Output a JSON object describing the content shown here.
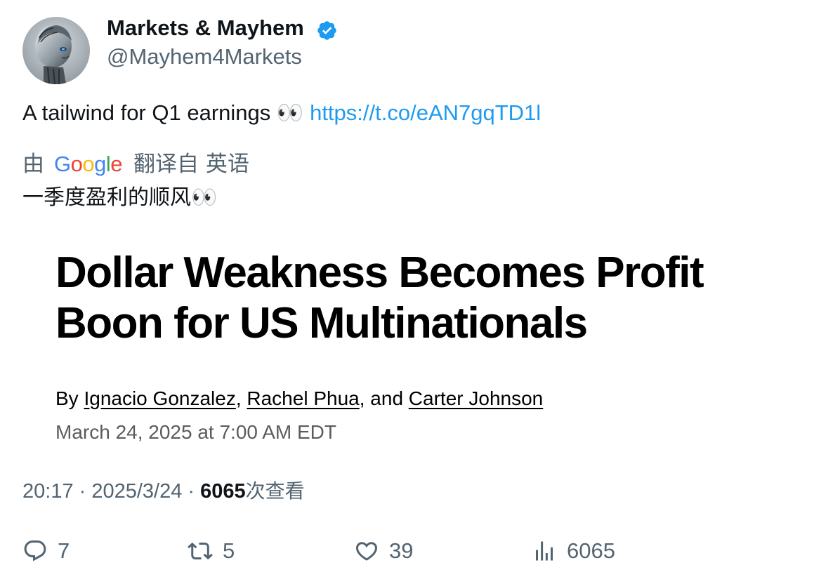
{
  "author": {
    "display_name": "Markets & Mayhem",
    "handle": "@Mayhem4Markets",
    "verified_color": "#1d9bf0"
  },
  "tweet": {
    "text": "A tailwind for Q1 earnings 👀 ",
    "link": "https://t.co/eAN7gqTD1l"
  },
  "translation": {
    "by_label": "由",
    "provider": "Google",
    "from_label": "翻译自 英语",
    "text": "一季度盈利的顺风👀"
  },
  "article_card": {
    "headline": "Dollar Weakness Becomes Profit Boon for US Multinationals",
    "byline_prefix": "By ",
    "authors": [
      "Ignacio Gonzalez",
      "Rachel Phua",
      "Carter Johnson"
    ],
    "byline_sep1": ", ",
    "byline_sep2": ", and ",
    "date": "March 24, 2025 at 7:00 AM EDT"
  },
  "meta": {
    "time": "20:17",
    "separator": " · ",
    "date": "2025/3/24",
    "views_count": "6065",
    "views_label": "次查看"
  },
  "actions": {
    "replies": "7",
    "retweets": "5",
    "likes": "39",
    "views": "6065"
  },
  "icons": {
    "reply": "reply-icon",
    "retweet": "retweet-icon",
    "like": "heart-icon",
    "views": "analytics-icon",
    "verified": "verified-badge-icon"
  },
  "colors": {
    "link": "#1d9bf0",
    "secondary_text": "#536471",
    "primary_text": "#0f1419"
  }
}
